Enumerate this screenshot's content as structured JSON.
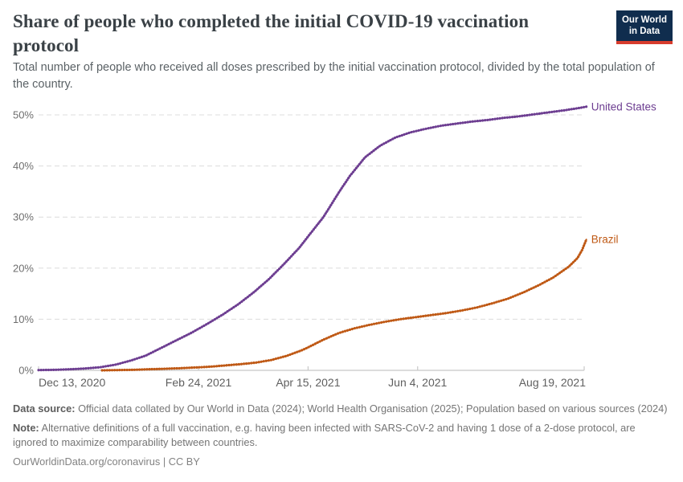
{
  "header": {
    "title": "Share of people who completed the initial COVID-19 vaccination protocol",
    "subtitle": "Total number of people who received all doses prescribed by the initial vaccination protocol, divided by the total population of the country.",
    "logo": {
      "line1": "Our World",
      "line2": "in Data",
      "bg_color": "#102d4e",
      "accent_color": "#d73c2d"
    }
  },
  "chart_data": {
    "type": "line",
    "title": "Share of people who completed the initial COVID-19 vaccination protocol",
    "xlabel": "",
    "ylabel": "",
    "grid": "dashed-horizontal",
    "legend_position": "line-end-labels",
    "x_axis": {
      "range_days": [
        0,
        249
      ],
      "tick_days": [
        0,
        73,
        123,
        173,
        249
      ],
      "tick_labels": [
        "Dec 13, 2020",
        "Feb 24, 2021",
        "Apr 15, 2021",
        "Jun 4, 2021",
        "Aug 19, 2021"
      ]
    },
    "y_axis": {
      "ticks": [
        0,
        10,
        20,
        30,
        40,
        50
      ],
      "tick_labels": [
        "0%",
        "10%",
        "20%",
        "30%",
        "40%",
        "50%"
      ],
      "ylim": [
        0,
        52
      ]
    },
    "series": [
      {
        "name": "United States",
        "color": "#6d3e91",
        "points_day_pct": [
          [
            0,
            0.05
          ],
          [
            7,
            0.1
          ],
          [
            14,
            0.2
          ],
          [
            21,
            0.35
          ],
          [
            28,
            0.6
          ],
          [
            35,
            1.1
          ],
          [
            42,
            1.9
          ],
          [
            49,
            2.9
          ],
          [
            56,
            4.4
          ],
          [
            63,
            5.9
          ],
          [
            70,
            7.4
          ],
          [
            77,
            9.1
          ],
          [
            84,
            10.9
          ],
          [
            91,
            12.9
          ],
          [
            98,
            15.2
          ],
          [
            105,
            17.8
          ],
          [
            112,
            20.8
          ],
          [
            119,
            24.0
          ],
          [
            123,
            26.2
          ],
          [
            130,
            30.0
          ],
          [
            137,
            34.8
          ],
          [
            142,
            38.0
          ],
          [
            149,
            41.7
          ],
          [
            156,
            44.0
          ],
          [
            163,
            45.6
          ],
          [
            170,
            46.6
          ],
          [
            177,
            47.3
          ],
          [
            184,
            47.9
          ],
          [
            191,
            48.3
          ],
          [
            198,
            48.7
          ],
          [
            205,
            49.0
          ],
          [
            212,
            49.4
          ],
          [
            219,
            49.7
          ],
          [
            226,
            50.1
          ],
          [
            233,
            50.5
          ],
          [
            240,
            50.9
          ],
          [
            246,
            51.3
          ],
          [
            250,
            51.6
          ]
        ]
      },
      {
        "name": "Brazil",
        "color": "#bf5915",
        "points_day_pct": [
          [
            29,
            0.0
          ],
          [
            36,
            0.05
          ],
          [
            43,
            0.1
          ],
          [
            50,
            0.2
          ],
          [
            57,
            0.3
          ],
          [
            64,
            0.4
          ],
          [
            71,
            0.55
          ],
          [
            78,
            0.7
          ],
          [
            85,
            0.95
          ],
          [
            92,
            1.2
          ],
          [
            99,
            1.5
          ],
          [
            106,
            2.0
          ],
          [
            113,
            2.8
          ],
          [
            120,
            3.9
          ],
          [
            123,
            4.5
          ],
          [
            130,
            6.0
          ],
          [
            137,
            7.3
          ],
          [
            144,
            8.2
          ],
          [
            151,
            8.9
          ],
          [
            158,
            9.5
          ],
          [
            165,
            10.0
          ],
          [
            172,
            10.4
          ],
          [
            179,
            10.8
          ],
          [
            186,
            11.2
          ],
          [
            193,
            11.7
          ],
          [
            200,
            12.3
          ],
          [
            207,
            13.1
          ],
          [
            214,
            14.0
          ],
          [
            221,
            15.2
          ],
          [
            228,
            16.6
          ],
          [
            235,
            18.2
          ],
          [
            242,
            20.3
          ],
          [
            246,
            22.0
          ],
          [
            248,
            23.5
          ],
          [
            250,
            25.6
          ]
        ]
      }
    ],
    "style": {
      "gridline_color": "#dcdcdc",
      "axis_color": "#c8c8c8",
      "y_tick_label_color": "#6e6e6e",
      "x_tick_label_color": "#5f5f5f"
    }
  },
  "footer": {
    "source_label": "Data source:",
    "source_text": " Official data collated by Our World in Data (2024); World Health Organisation (2025); Population based on various sources (2024)",
    "note_label": "Note:",
    "note_text": " Alternative definitions of a full vaccination, e.g. having been infected with SARS-CoV-2 and having 1 dose of a 2-dose protocol, are ignored to maximize comparability between countries.",
    "credit_url": "OurWorldinData.org/coronavirus",
    "credit_separator": " | ",
    "credit_license": "CC BY"
  }
}
